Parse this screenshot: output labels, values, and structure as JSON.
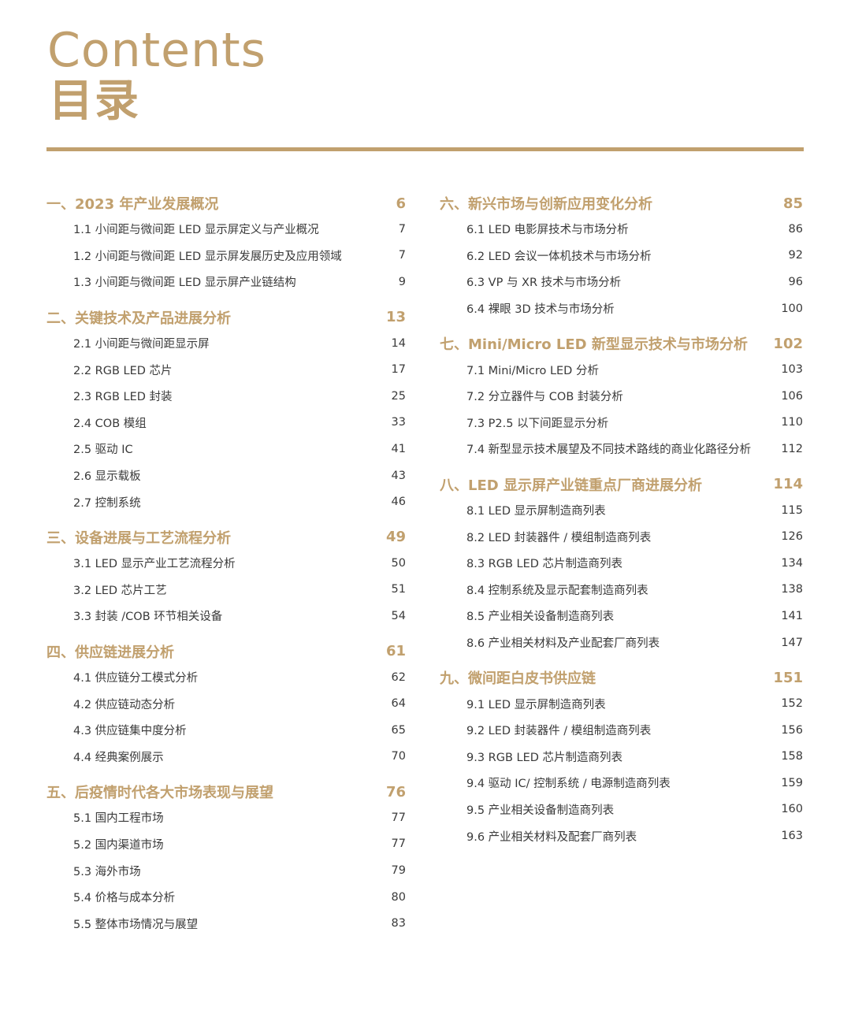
{
  "title_en": "Contents",
  "title_zh": "目录",
  "accent_color": "#c1a06e",
  "left": [
    {
      "title": "一、2023 年产业发展概况",
      "page": "6",
      "items": [
        {
          "title": "1.1 小间距与微间距 LED 显示屏定义与产业概况",
          "page": "7"
        },
        {
          "title": "1.2 小间距与微间距 LED 显示屏发展历史及应用领域",
          "page": "7"
        },
        {
          "title": "1.3 小间距与微间距 LED 显示屏产业链结构",
          "page": "9"
        }
      ]
    },
    {
      "title": "二、关键技术及产品进展分析",
      "page": "13",
      "items": [
        {
          "title": "2.1 小间距与微间距显示屏",
          "page": "14"
        },
        {
          "title": "2.2 RGB LED 芯片",
          "page": "17"
        },
        {
          "title": "2.3 RGB LED 封装",
          "page": "25"
        },
        {
          "title": "2.4 COB 模组",
          "page": "33"
        },
        {
          "title": "2.5 驱动 IC",
          "page": "41"
        },
        {
          "title": "2.6 显示载板",
          "page": "43"
        },
        {
          "title": "2.7 控制系统",
          "page": "46"
        }
      ]
    },
    {
      "title": "三、设备进展与工艺流程分析",
      "page": "49",
      "items": [
        {
          "title": "3.1 LED 显示产业工艺流程分析",
          "page": "50"
        },
        {
          "title": "3.2 LED 芯片工艺",
          "page": "51"
        },
        {
          "title": "3.3 封装 /COB 环节相关设备",
          "page": "54"
        }
      ]
    },
    {
      "title": "四、供应链进展分析",
      "page": "61",
      "items": [
        {
          "title": "4.1 供应链分工模式分析",
          "page": "62"
        },
        {
          "title": "4.2 供应链动态分析",
          "page": "64"
        },
        {
          "title": "4.3 供应链集中度分析",
          "page": "65"
        },
        {
          "title": "4.4 经典案例展示",
          "page": "70"
        }
      ]
    },
    {
      "title": "五、后疫情时代各大市场表现与展望",
      "page": "76",
      "items": [
        {
          "title": "5.1 国内工程市场",
          "page": "77"
        },
        {
          "title": "5.2 国内渠道市场",
          "page": "77"
        },
        {
          "title": "5.3 海外市场",
          "page": "79"
        },
        {
          "title": "5.4 价格与成本分析",
          "page": "80"
        },
        {
          "title": "5.5 整体市场情况与展望",
          "page": "83"
        }
      ]
    }
  ],
  "right": [
    {
      "title": "六、新兴市场与创新应用变化分析",
      "page": "85",
      "items": [
        {
          "title": "6.1 LED 电影屏技术与市场分析",
          "page": "86"
        },
        {
          "title": "6.2 LED 会议一体机技术与市场分析",
          "page": "92"
        },
        {
          "title": "6.3 VP 与 XR 技术与市场分析",
          "page": "96"
        },
        {
          "title": "6.4 裸眼 3D 技术与市场分析",
          "page": "100"
        }
      ]
    },
    {
      "title": "七、Mini/Micro LED 新型显示技术与市场分析",
      "page": "102",
      "items": [
        {
          "title": "7.1 Mini/Micro LED 分析",
          "page": "103"
        },
        {
          "title": "7.2 分立器件与 COB 封装分析",
          "page": "106"
        },
        {
          "title": "7.3 P2.5 以下间距显示分析",
          "page": "110"
        },
        {
          "title": "7.4 新型显示技术展望及不同技术路线的商业化路径分析",
          "page": "112"
        }
      ]
    },
    {
      "title": "八、LED 显示屏产业链重点厂商进展分析",
      "page": "114",
      "items": [
        {
          "title": "8.1 LED 显示屏制造商列表",
          "page": "115"
        },
        {
          "title": "8.2 LED 封装器件 / 模组制造商列表",
          "page": "126"
        },
        {
          "title": "8.3 RGB LED 芯片制造商列表",
          "page": "134"
        },
        {
          "title": "8.4 控制系统及显示配套制造商列表",
          "page": "138"
        },
        {
          "title": "8.5 产业相关设备制造商列表",
          "page": "141"
        },
        {
          "title": "8.6 产业相关材料及产业配套厂商列表",
          "page": "147"
        }
      ]
    },
    {
      "title": "九、微间距白皮书供应链",
      "page": "151",
      "items": [
        {
          "title": "9.1 LED 显示屏制造商列表",
          "page": "152"
        },
        {
          "title": "9.2 LED 封装器件 / 模组制造商列表",
          "page": "156"
        },
        {
          "title": "9.3 RGB LED 芯片制造商列表",
          "page": "158"
        },
        {
          "title": "9.4 驱动 IC/ 控制系统 / 电源制造商列表",
          "page": "159"
        },
        {
          "title": "9.5 产业相关设备制造商列表",
          "page": "160"
        },
        {
          "title": "9.6 产业相关材料及配套厂商列表",
          "page": "163"
        }
      ]
    }
  ]
}
